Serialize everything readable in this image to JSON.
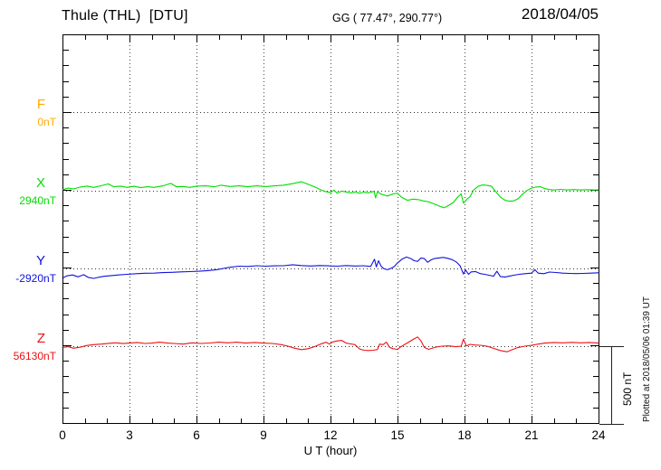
{
  "chart_data": {
    "type": "line",
    "title": "Thule (THL)  [DTU]",
    "geo_coords": "GG ( 77.47°, 290.77°)",
    "date": "2018/04/05",
    "xlabel": "U T (hour)",
    "x_range": [
      0,
      24
    ],
    "x_ticks": [
      0,
      3,
      6,
      9,
      12,
      15,
      18,
      21,
      24
    ],
    "x_minor_step_hours": 1,
    "y_minor_division_nT": 100,
    "scale_bar_label": "500 nT",
    "scale_bar_nT": 500,
    "plotted_note": "Plotted at 2018/05/06 01:39 UT",
    "grid": "dotted vertical every 3 h, dotted horizontal at each component baseline",
    "legend_position": "left margin, stacked per component",
    "series": [
      {
        "name": "F",
        "baseline_label": "0nT",
        "baseline_value_nT": 0,
        "color": "#ffaa00",
        "points_hour_deltanT": []
      },
      {
        "name": "X",
        "baseline_label": "2940nT",
        "baseline_value_nT": 2940,
        "color": "#00dd00",
        "points_hour_deltanT": [
          [
            0,
            5
          ],
          [
            0.25,
            15
          ],
          [
            0.5,
            10
          ],
          [
            0.8,
            22
          ],
          [
            1.1,
            28
          ],
          [
            1.4,
            20
          ],
          [
            1.7,
            30
          ],
          [
            2.05,
            42
          ],
          [
            2.3,
            24
          ],
          [
            2.6,
            28
          ],
          [
            2.9,
            20
          ],
          [
            3.2,
            27
          ],
          [
            3.5,
            18
          ],
          [
            3.8,
            24
          ],
          [
            4.1,
            20
          ],
          [
            4.5,
            30
          ],
          [
            4.85,
            46
          ],
          [
            5.1,
            24
          ],
          [
            5.4,
            26
          ],
          [
            5.7,
            20
          ],
          [
            6,
            28
          ],
          [
            6.4,
            30
          ],
          [
            6.8,
            24
          ],
          [
            7.1,
            34
          ],
          [
            7.5,
            26
          ],
          [
            7.9,
            30
          ],
          [
            8.3,
            24
          ],
          [
            8.7,
            30
          ],
          [
            9.1,
            25
          ],
          [
            9.5,
            30
          ],
          [
            9.9,
            34
          ],
          [
            10.3,
            44
          ],
          [
            10.7,
            56
          ],
          [
            11,
            40
          ],
          [
            11.3,
            22
          ],
          [
            11.6,
            2
          ],
          [
            11.8,
            -8
          ],
          [
            12,
            -14
          ],
          [
            12.15,
            2
          ],
          [
            12.3,
            -18
          ],
          [
            12.5,
            -4
          ],
          [
            12.7,
            -10
          ],
          [
            12.9,
            -16
          ],
          [
            13.1,
            -10
          ],
          [
            13.3,
            -18
          ],
          [
            13.5,
            -10
          ],
          [
            13.7,
            -16
          ],
          [
            13.95,
            -6
          ],
          [
            14.02,
            -48
          ],
          [
            14.1,
            -10
          ],
          [
            14.3,
            -26
          ],
          [
            14.55,
            -36
          ],
          [
            14.8,
            -22
          ],
          [
            15,
            -18
          ],
          [
            15.2,
            -46
          ],
          [
            15.45,
            -64
          ],
          [
            15.7,
            -56
          ],
          [
            15.95,
            -60
          ],
          [
            16.15,
            -68
          ],
          [
            16.35,
            -72
          ],
          [
            16.55,
            -82
          ],
          [
            16.75,
            -94
          ],
          [
            16.95,
            -106
          ],
          [
            17.1,
            -112
          ],
          [
            17.3,
            -96
          ],
          [
            17.5,
            -78
          ],
          [
            17.7,
            -42
          ],
          [
            17.85,
            -22
          ],
          [
            17.95,
            -82
          ],
          [
            18.1,
            -58
          ],
          [
            18.25,
            -40
          ],
          [
            18.4,
            2
          ],
          [
            18.6,
            26
          ],
          [
            18.8,
            36
          ],
          [
            19,
            33
          ],
          [
            19.2,
            28
          ],
          [
            19.4,
            -8
          ],
          [
            19.6,
            -42
          ],
          [
            19.8,
            -62
          ],
          [
            20,
            -70
          ],
          [
            20.2,
            -68
          ],
          [
            20.4,
            -54
          ],
          [
            20.6,
            -24
          ],
          [
            20.8,
            0
          ],
          [
            21,
            15
          ],
          [
            21.2,
            22
          ],
          [
            21.4,
            24
          ],
          [
            21.6,
            12
          ],
          [
            21.8,
            6
          ],
          [
            22,
            3
          ],
          [
            22.3,
            7
          ],
          [
            22.6,
            3
          ],
          [
            22.9,
            6
          ],
          [
            23.2,
            3
          ],
          [
            23.5,
            5
          ],
          [
            23.8,
            3
          ],
          [
            24,
            4
          ]
        ]
      },
      {
        "name": "Y",
        "baseline_label": "-2920nT",
        "baseline_value_nT": -2920,
        "color": "#1111dd",
        "points_hour_deltanT": [
          [
            0,
            -64
          ],
          [
            0.2,
            -50
          ],
          [
            0.45,
            -44
          ],
          [
            0.7,
            -56
          ],
          [
            0.95,
            -42
          ],
          [
            1.15,
            -60
          ],
          [
            1.4,
            -66
          ],
          [
            1.65,
            -58
          ],
          [
            1.9,
            -52
          ],
          [
            2.2,
            -48
          ],
          [
            2.5,
            -44
          ],
          [
            2.9,
            -40
          ],
          [
            3.3,
            -36
          ],
          [
            3.7,
            -33
          ],
          [
            4.1,
            -32
          ],
          [
            4.5,
            -29
          ],
          [
            4.9,
            -27
          ],
          [
            5.3,
            -24
          ],
          [
            5.7,
            -22
          ],
          [
            6.1,
            -20
          ],
          [
            6.5,
            -16
          ],
          [
            6.9,
            -10
          ],
          [
            7.2,
            -2
          ],
          [
            7.5,
            6
          ],
          [
            7.9,
            13
          ],
          [
            8.3,
            11
          ],
          [
            8.7,
            16
          ],
          [
            9.1,
            13
          ],
          [
            9.5,
            15
          ],
          [
            9.9,
            16
          ],
          [
            10.3,
            22
          ],
          [
            10.7,
            17
          ],
          [
            11.1,
            14
          ],
          [
            11.5,
            17
          ],
          [
            11.9,
            15
          ],
          [
            12.3,
            13
          ],
          [
            12.7,
            17
          ],
          [
            13.1,
            14
          ],
          [
            13.5,
            16
          ],
          [
            13.8,
            11
          ],
          [
            13.97,
            58
          ],
          [
            14.05,
            8
          ],
          [
            14.15,
            48
          ],
          [
            14.27,
            12
          ],
          [
            14.4,
            -4
          ],
          [
            14.55,
            -10
          ],
          [
            14.7,
            -2
          ],
          [
            14.85,
            10
          ],
          [
            15,
            34
          ],
          [
            15.2,
            58
          ],
          [
            15.4,
            72
          ],
          [
            15.6,
            62
          ],
          [
            15.75,
            48
          ],
          [
            15.9,
            44
          ],
          [
            16.05,
            66
          ],
          [
            16.2,
            62
          ],
          [
            16.35,
            38
          ],
          [
            16.5,
            54
          ],
          [
            16.65,
            62
          ],
          [
            16.85,
            66
          ],
          [
            17.05,
            70
          ],
          [
            17.25,
            64
          ],
          [
            17.45,
            55
          ],
          [
            17.65,
            38
          ],
          [
            17.8,
            16
          ],
          [
            17.95,
            -38
          ],
          [
            18.05,
            -12
          ],
          [
            18.18,
            -40
          ],
          [
            18.3,
            -24
          ],
          [
            18.5,
            -22
          ],
          [
            18.7,
            -35
          ],
          [
            18.9,
            -40
          ],
          [
            19.1,
            -46
          ],
          [
            19.3,
            -52
          ],
          [
            19.45,
            -20
          ],
          [
            19.6,
            -54
          ],
          [
            19.8,
            -58
          ],
          [
            20,
            -52
          ],
          [
            20.2,
            -46
          ],
          [
            20.45,
            -40
          ],
          [
            20.7,
            -36
          ],
          [
            21,
            -32
          ],
          [
            21.15,
            -10
          ],
          [
            21.3,
            -32
          ],
          [
            21.55,
            -36
          ],
          [
            21.8,
            -25
          ],
          [
            22.1,
            -28
          ],
          [
            22.4,
            -32
          ],
          [
            22.7,
            -34
          ],
          [
            23,
            -35
          ],
          [
            23.3,
            -34
          ],
          [
            23.65,
            -32
          ],
          [
            24,
            -30
          ]
        ]
      },
      {
        "name": "Z",
        "baseline_label": "56130nT",
        "baseline_value_nT": 56130,
        "color": "#ee1111",
        "points_hour_deltanT": [
          [
            0,
            -10
          ],
          [
            0.25,
            -5
          ],
          [
            0.5,
            -15
          ],
          [
            0.8,
            -8
          ],
          [
            1.1,
            3
          ],
          [
            1.4,
            8
          ],
          [
            1.75,
            12
          ],
          [
            2.1,
            17
          ],
          [
            2.4,
            20
          ],
          [
            2.7,
            15
          ],
          [
            3,
            18
          ],
          [
            3.35,
            22
          ],
          [
            3.7,
            16
          ],
          [
            4,
            18
          ],
          [
            4.35,
            24
          ],
          [
            4.7,
            18
          ],
          [
            5,
            16
          ],
          [
            5.4,
            12
          ],
          [
            5.8,
            20
          ],
          [
            6.2,
            16
          ],
          [
            6.6,
            19
          ],
          [
            7,
            24
          ],
          [
            7.4,
            20
          ],
          [
            7.8,
            24
          ],
          [
            8.2,
            18
          ],
          [
            8.6,
            22
          ],
          [
            9,
            18
          ],
          [
            9.4,
            16
          ],
          [
            9.8,
            8
          ],
          [
            10.1,
            -2
          ],
          [
            10.4,
            -15
          ],
          [
            10.7,
            -24
          ],
          [
            11,
            -18
          ],
          [
            11.3,
            -4
          ],
          [
            11.6,
            14
          ],
          [
            11.8,
            24
          ],
          [
            11.95,
            12
          ],
          [
            12.1,
            26
          ],
          [
            12.3,
            32
          ],
          [
            12.5,
            36
          ],
          [
            12.7,
            18
          ],
          [
            12.9,
            13
          ],
          [
            13.1,
            8
          ],
          [
            13.3,
            -20
          ],
          [
            13.5,
            -28
          ],
          [
            13.7,
            -30
          ],
          [
            13.9,
            -28
          ],
          [
            14.1,
            -24
          ],
          [
            14.2,
            12
          ],
          [
            14.35,
            8
          ],
          [
            14.5,
            24
          ],
          [
            14.65,
            -10
          ],
          [
            14.8,
            -18
          ],
          [
            15,
            -22
          ],
          [
            15.15,
            -5
          ],
          [
            15.4,
            16
          ],
          [
            15.7,
            42
          ],
          [
            15.9,
            58
          ],
          [
            16.05,
            32
          ],
          [
            16.2,
            -10
          ],
          [
            16.4,
            -22
          ],
          [
            16.7,
            -8
          ],
          [
            17,
            -2
          ],
          [
            17.3,
            0
          ],
          [
            17.6,
            -5
          ],
          [
            17.85,
            -2
          ],
          [
            17.95,
            44
          ],
          [
            18.08,
            0
          ],
          [
            18.25,
            10
          ],
          [
            18.45,
            6
          ],
          [
            18.7,
            4
          ],
          [
            19,
            -2
          ],
          [
            19.3,
            -16
          ],
          [
            19.6,
            -30
          ],
          [
            19.9,
            -38
          ],
          [
            20.15,
            -24
          ],
          [
            20.4,
            -10
          ],
          [
            20.7,
            -2
          ],
          [
            21,
            4
          ],
          [
            21.3,
            12
          ],
          [
            21.6,
            18
          ],
          [
            22,
            22
          ],
          [
            22.4,
            20
          ],
          [
            22.8,
            23
          ],
          [
            23.2,
            20
          ],
          [
            23.6,
            22
          ],
          [
            24,
            18
          ]
        ]
      }
    ]
  }
}
